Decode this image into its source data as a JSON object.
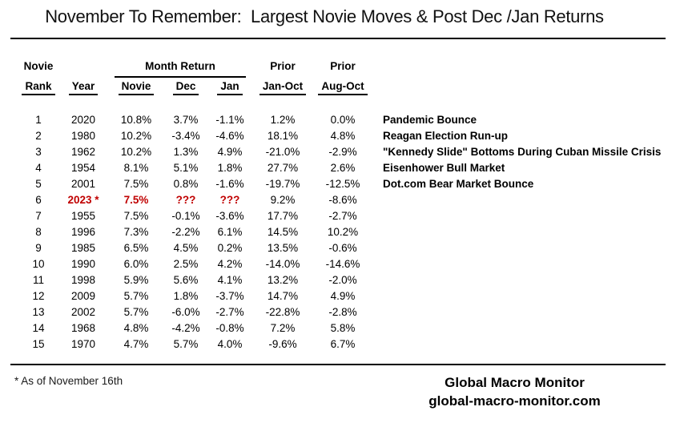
{
  "title": "November To Remember:  Largest Novie Moves & Post Dec /Jan Returns",
  "chart_data": {
    "type": "table",
    "title": "November To Remember:  Largest Novie Moves & Post Dec /Jan Returns",
    "header_groups": {
      "novie": "Novie",
      "month_return": "Month Return",
      "prior_jan": "Prior",
      "prior_aug": "Prior"
    },
    "columns": [
      "Rank",
      "Year",
      "Novie",
      "Dec",
      "Jan",
      "Jan-Oct",
      "Aug-Oct"
    ],
    "highlight_color": "#c00000",
    "rows": [
      {
        "rank": "1",
        "year": "2020",
        "novie": "10.8%",
        "dec": "3.7%",
        "jan": "-1.1%",
        "jan_oct": "1.2%",
        "aug_oct": "0.0%",
        "note": "Pandemic Bounce",
        "highlight": false
      },
      {
        "rank": "2",
        "year": "1980",
        "novie": "10.2%",
        "dec": "-3.4%",
        "jan": "-4.6%",
        "jan_oct": "18.1%",
        "aug_oct": "4.8%",
        "note": "Reagan Election Run-up",
        "highlight": false
      },
      {
        "rank": "3",
        "year": "1962",
        "novie": "10.2%",
        "dec": "1.3%",
        "jan": "4.9%",
        "jan_oct": "-21.0%",
        "aug_oct": "-2.9%",
        "note": "\"Kennedy Slide\" Bottoms During Cuban Missile Crisis",
        "highlight": false
      },
      {
        "rank": "4",
        "year": "1954",
        "novie": "8.1%",
        "dec": "5.1%",
        "jan": "1.8%",
        "jan_oct": "27.7%",
        "aug_oct": "2.6%",
        "note": "Eisenhower Bull Market",
        "highlight": false
      },
      {
        "rank": "5",
        "year": "2001",
        "novie": "7.5%",
        "dec": "0.8%",
        "jan": "-1.6%",
        "jan_oct": "-19.7%",
        "aug_oct": "-12.5%",
        "note": "Dot.com Bear Market Bounce",
        "highlight": false
      },
      {
        "rank": "6",
        "year": "2023 *",
        "novie": "7.5%",
        "dec": "???",
        "jan": "???",
        "jan_oct": "9.2%",
        "aug_oct": "-8.6%",
        "note": "",
        "highlight": true
      },
      {
        "rank": "7",
        "year": "1955",
        "novie": "7.5%",
        "dec": "-0.1%",
        "jan": "-3.6%",
        "jan_oct": "17.7%",
        "aug_oct": "-2.7%",
        "note": "",
        "highlight": false
      },
      {
        "rank": "8",
        "year": "1996",
        "novie": "7.3%",
        "dec": "-2.2%",
        "jan": "6.1%",
        "jan_oct": "14.5%",
        "aug_oct": "10.2%",
        "note": "",
        "highlight": false
      },
      {
        "rank": "9",
        "year": "1985",
        "novie": "6.5%",
        "dec": "4.5%",
        "jan": "0.2%",
        "jan_oct": "13.5%",
        "aug_oct": "-0.6%",
        "note": "",
        "highlight": false
      },
      {
        "rank": "10",
        "year": "1990",
        "novie": "6.0%",
        "dec": "2.5%",
        "jan": "4.2%",
        "jan_oct": "-14.0%",
        "aug_oct": "-14.6%",
        "note": "",
        "highlight": false
      },
      {
        "rank": "11",
        "year": "1998",
        "novie": "5.9%",
        "dec": "5.6%",
        "jan": "4.1%",
        "jan_oct": "13.2%",
        "aug_oct": "-2.0%",
        "note": "",
        "highlight": false
      },
      {
        "rank": "12",
        "year": "2009",
        "novie": "5.7%",
        "dec": "1.8%",
        "jan": "-3.7%",
        "jan_oct": "14.7%",
        "aug_oct": "4.9%",
        "note": "",
        "highlight": false
      },
      {
        "rank": "13",
        "year": "2002",
        "novie": "5.7%",
        "dec": "-6.0%",
        "jan": "-2.7%",
        "jan_oct": "-22.8%",
        "aug_oct": "-2.8%",
        "note": "",
        "highlight": false
      },
      {
        "rank": "14",
        "year": "1968",
        "novie": "4.8%",
        "dec": "-4.2%",
        "jan": "-0.8%",
        "jan_oct": "7.2%",
        "aug_oct": "5.8%",
        "note": "",
        "highlight": false
      },
      {
        "rank": "15",
        "year": "1970",
        "novie": "4.7%",
        "dec": "5.7%",
        "jan": "4.0%",
        "jan_oct": "-9.6%",
        "aug_oct": "6.7%",
        "note": "",
        "highlight": false
      }
    ]
  },
  "footnote": "* As of November 16th",
  "brand": {
    "name": "Global Macro Monitor",
    "site": "global-macro-monitor.com"
  }
}
